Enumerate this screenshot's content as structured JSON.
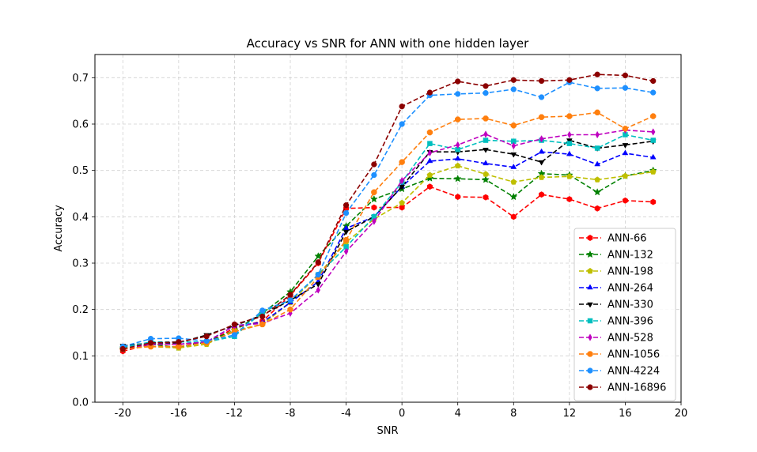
{
  "chart_data": {
    "type": "line",
    "title": "Accuracy vs SNR for ANN with one hidden layer",
    "xlabel": "SNR",
    "ylabel": "Accuracy",
    "xlim": [
      -22,
      20
    ],
    "ylim": [
      0,
      0.75
    ],
    "xticks": [
      -20,
      -16,
      -12,
      -8,
      -4,
      0,
      4,
      8,
      12,
      16,
      20
    ],
    "yticks": [
      0.0,
      0.1,
      0.2,
      0.3,
      0.4,
      0.5,
      0.6,
      0.7
    ],
    "grid": true,
    "legend_position": "lower-right",
    "x": [
      -20,
      -18,
      -16,
      -14,
      -12,
      -10,
      -8,
      -6,
      -4,
      -2,
      0,
      2,
      4,
      6,
      8,
      10,
      12,
      14,
      16,
      18
    ],
    "series": [
      {
        "name": "ANN-66",
        "color": "#ff0000",
        "marker": "hexagon",
        "values": [
          0.11,
          0.125,
          0.125,
          0.128,
          0.16,
          0.175,
          0.23,
          0.3,
          0.418,
          0.42,
          0.42,
          0.465,
          0.443,
          0.442,
          0.4,
          0.448,
          0.438,
          0.418,
          0.435,
          0.432
        ]
      },
      {
        "name": "ANN-132",
        "color": "#008000",
        "marker": "star",
        "values": [
          0.115,
          0.125,
          0.118,
          0.13,
          0.155,
          0.192,
          0.238,
          0.315,
          0.38,
          0.438,
          0.46,
          0.483,
          0.482,
          0.48,
          0.443,
          0.493,
          0.49,
          0.453,
          0.488,
          0.5
        ]
      },
      {
        "name": "ANN-198",
        "color": "#bfbf00",
        "marker": "pentagon",
        "values": [
          0.118,
          0.12,
          0.117,
          0.125,
          0.155,
          0.168,
          0.215,
          0.275,
          0.345,
          0.395,
          0.43,
          0.49,
          0.51,
          0.492,
          0.475,
          0.485,
          0.487,
          0.48,
          0.488,
          0.497
        ]
      },
      {
        "name": "ANN-264",
        "color": "#0000ff",
        "marker": "triangle-up",
        "values": [
          0.12,
          0.125,
          0.125,
          0.13,
          0.165,
          0.172,
          0.215,
          0.26,
          0.375,
          0.4,
          0.465,
          0.52,
          0.525,
          0.515,
          0.507,
          0.54,
          0.535,
          0.513,
          0.537,
          0.528
        ]
      },
      {
        "name": "ANN-330",
        "color": "#000000",
        "marker": "triangle-down",
        "values": [
          0.122,
          0.128,
          0.128,
          0.145,
          0.165,
          0.188,
          0.22,
          0.255,
          0.368,
          0.4,
          0.465,
          0.54,
          0.54,
          0.545,
          0.535,
          0.518,
          0.565,
          0.548,
          0.555,
          0.563
        ]
      },
      {
        "name": "ANN-396",
        "color": "#00bfbf",
        "marker": "square",
        "values": [
          0.118,
          0.13,
          0.13,
          0.13,
          0.142,
          0.195,
          0.22,
          0.275,
          0.335,
          0.4,
          0.475,
          0.558,
          0.545,
          0.565,
          0.563,
          0.565,
          0.558,
          0.548,
          0.577,
          0.565
        ]
      },
      {
        "name": "ANN-528",
        "color": "#bf00bf",
        "marker": "thin-diamond",
        "values": [
          0.115,
          0.125,
          0.125,
          0.13,
          0.165,
          0.17,
          0.192,
          0.242,
          0.325,
          0.39,
          0.478,
          0.538,
          0.555,
          0.578,
          0.553,
          0.568,
          0.577,
          0.577,
          0.587,
          0.583
        ]
      },
      {
        "name": "ANN-1056",
        "color": "#ff7f0e",
        "marker": "octagon",
        "values": [
          0.115,
          0.12,
          0.12,
          0.128,
          0.152,
          0.168,
          0.2,
          0.27,
          0.35,
          0.453,
          0.518,
          0.582,
          0.61,
          0.612,
          0.597,
          0.615,
          0.617,
          0.625,
          0.59,
          0.617
        ]
      },
      {
        "name": "ANN-4224",
        "color": "#1e90ff",
        "marker": "circle",
        "values": [
          0.12,
          0.137,
          0.138,
          0.132,
          0.145,
          0.198,
          0.22,
          0.275,
          0.408,
          0.49,
          0.6,
          0.662,
          0.665,
          0.667,
          0.675,
          0.658,
          0.69,
          0.677,
          0.678,
          0.668
        ]
      },
      {
        "name": "ANN-16896",
        "color": "#8b0000",
        "marker": "circle",
        "values": [
          0.115,
          0.128,
          0.13,
          0.142,
          0.168,
          0.185,
          0.232,
          0.302,
          0.425,
          0.513,
          0.638,
          0.668,
          0.692,
          0.682,
          0.695,
          0.693,
          0.695,
          0.707,
          0.705,
          0.693
        ]
      }
    ]
  }
}
